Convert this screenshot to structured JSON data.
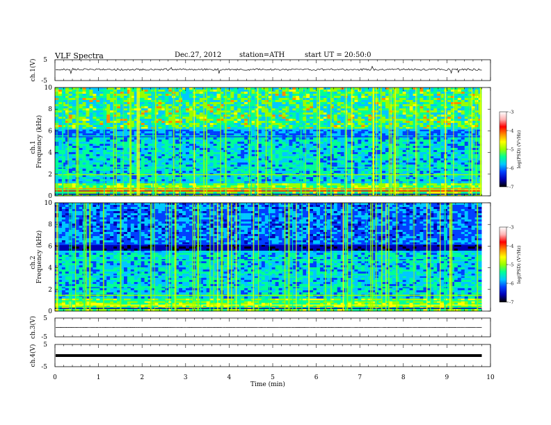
{
  "header": {
    "title": "VLF Spectra",
    "date": "Dec.27, 2012",
    "station": "station=ATH",
    "start": "start UT = 20:50:0"
  },
  "colors": {
    "colormap": [
      "#000000",
      "#0000b4",
      "#0040ff",
      "#00c8ff",
      "#00ff96",
      "#96ff00",
      "#ffff00",
      "#ff8c00",
      "#ff0000",
      "#ffb4b4",
      "#ffffff"
    ],
    "trace": "#000000"
  },
  "chart_data": {
    "type": "heatmap",
    "xlabel": "Time (min)",
    "xlim": [
      0,
      10
    ],
    "xticks": [
      "0",
      "1",
      "2",
      "3",
      "4",
      "5",
      "6",
      "7",
      "8",
      "9",
      "10"
    ],
    "data_end_min": 9.8,
    "panels": [
      {
        "id": "ch1v",
        "kind": "trace",
        "ylabel": "ch.1(V)",
        "ylim": [
          -5,
          5
        ],
        "yticks": [
          "5",
          "-5"
        ],
        "baseline": 0.3
      },
      {
        "id": "ch1s",
        "kind": "spectrogram",
        "ylabel_top": "ch.1",
        "ylabel": "Frequency (kHz)",
        "ylim": [
          0,
          10
        ],
        "yticks": [
          "0",
          "2",
          "4",
          "6",
          "8",
          "10"
        ],
        "colorbar": {
          "label": "log(PSD) (V²/Hz)",
          "range": [
            -7,
            -3
          ],
          "ticks": [
            "-3",
            "-4",
            "-5",
            "-6",
            "-7"
          ]
        }
      },
      {
        "id": "ch2s",
        "kind": "spectrogram",
        "ylabel_top": "ch.2",
        "ylabel": "Frequency (kHz)",
        "ylim": [
          0,
          10
        ],
        "yticks": [
          "0",
          "2",
          "4",
          "6",
          "8",
          "10"
        ],
        "colorbar": {
          "label": "log(PSD) (V²/Hz)",
          "range": [
            -7,
            -3
          ],
          "ticks": [
            "-3",
            "-4",
            "-5",
            "-6",
            "-7"
          ]
        }
      },
      {
        "id": "ch3v",
        "kind": "trace",
        "ylabel": "ch.3(V)",
        "ylim": [
          -5,
          5
        ],
        "yticks": [
          "5",
          "-5"
        ],
        "baseline": 0.0
      },
      {
        "id": "ch4v",
        "kind": "trace",
        "ylabel": "ch.4(V)",
        "ylim": [
          -5,
          5
        ],
        "yticks": [
          "5",
          "-5"
        ],
        "baseline": 0.0
      }
    ]
  }
}
